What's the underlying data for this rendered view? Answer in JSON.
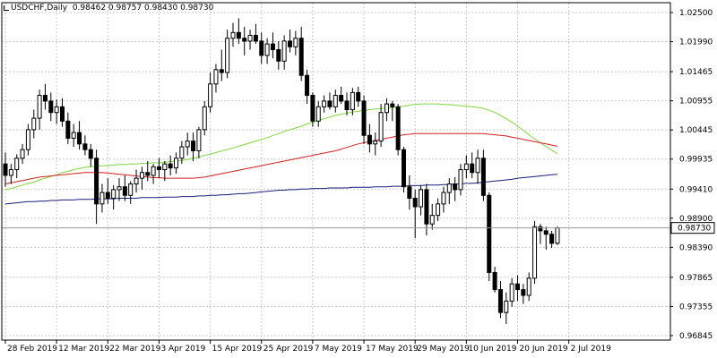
{
  "header": {
    "symbol_period": "USDCHF,Daily",
    "open": "0.98462",
    "high": "0.98757",
    "low": "0.98430",
    "close": "0.98730"
  },
  "colors": {
    "background": "#ffffff",
    "grid": "#c8c8c8",
    "candle_up_fill": "#ffffff",
    "candle_down_fill": "#000000",
    "candle_outline": "#000000",
    "ma_fast": "#7fd63a",
    "ma_mid": "#d42020",
    "ma_slow": "#1c1c7c",
    "price_label_bg": "#ffffff",
    "current_line": "#9a9a9a"
  },
  "chart_data": {
    "type": "candlestick",
    "price_axis": {
      "ticks": [
        "1.02500",
        "1.01990",
        "1.01465",
        "1.00955",
        "1.00445",
        "0.99935",
        "0.99410",
        "0.98900",
        "0.98390",
        "0.97865",
        "0.97355",
        "0.96845"
      ],
      "ylim": [
        0.96845,
        1.025
      ],
      "current_price_label": "0.98730"
    },
    "time_axis": {
      "ticks": [
        "28 Feb 2019",
        "12 Mar 2019",
        "22 Mar 2019",
        "3 Apr 2019",
        "15 Apr 2019",
        "25 Apr 2019",
        "7 May 2019",
        "17 May 2019",
        "29 May 2019",
        "10 Jun 2019",
        "20 Jun 2019",
        "2 Jul 2019"
      ]
    },
    "candles": [
      [
        0.9985,
        1.0005,
        0.9945,
        0.9965
      ],
      [
        0.9965,
        0.9985,
        0.995,
        0.9975
      ],
      [
        0.9975,
        1.0002,
        0.996,
        0.9995
      ],
      [
        0.9995,
        1.002,
        0.9985,
        1.001
      ],
      [
        1.001,
        1.0055,
        1.0,
        1.0045
      ],
      [
        1.0045,
        1.008,
        1.003,
        1.0065
      ],
      [
        1.0065,
        1.0115,
        1.0045,
        1.0105
      ],
      [
        1.0105,
        1.0125,
        1.008,
        1.0095
      ],
      [
        1.0095,
        1.011,
        1.006,
        1.0075
      ],
      [
        1.0075,
        1.0098,
        1.0055,
        1.0085
      ],
      [
        1.0085,
        1.01,
        1.005,
        1.006
      ],
      [
        1.006,
        1.0075,
        1.002,
        1.003
      ],
      [
        1.003,
        1.0055,
        1.0015,
        1.004
      ],
      [
        1.004,
        1.006,
        1.001,
        1.002
      ],
      [
        1.002,
        1.0035,
        1.0,
        1.001
      ],
      [
        1.001,
        1.002,
        0.998,
        0.9995
      ],
      [
        0.9995,
        1.001,
        0.988,
        0.9915
      ],
      [
        0.9915,
        0.995,
        0.99,
        0.9935
      ],
      [
        0.9935,
        0.996,
        0.9915,
        0.9925
      ],
      [
        0.9925,
        0.9948,
        0.9905,
        0.994
      ],
      [
        0.994,
        0.996,
        0.992,
        0.9945
      ],
      [
        0.9945,
        0.9965,
        0.992,
        0.993
      ],
      [
        0.993,
        0.9955,
        0.9915,
        0.995
      ],
      [
        0.995,
        0.9975,
        0.9935,
        0.996
      ],
      [
        0.996,
        0.998,
        0.994,
        0.997
      ],
      [
        0.997,
        0.999,
        0.9955,
        0.9965
      ],
      [
        0.9965,
        0.9985,
        0.995,
        0.998
      ],
      [
        0.998,
        0.9995,
        0.996,
        0.9975
      ],
      [
        0.9975,
        0.999,
        0.9955,
        0.9985
      ],
      [
        0.9985,
        1.0,
        0.9965,
        0.9978
      ],
      [
        0.9978,
        1.0005,
        0.9968,
        0.9995
      ],
      [
        0.9995,
        1.0025,
        0.9985,
        1.0015
      ],
      [
        1.0015,
        1.004,
        1.0,
        1.0025
      ],
      [
        1.0025,
        1.004,
        0.999,
        1.0008
      ],
      [
        1.0008,
        1.005,
        0.9995,
        1.0045
      ],
      [
        1.0045,
        1.0095,
        1.0035,
        1.0085
      ],
      [
        1.0085,
        1.0145,
        1.0075,
        1.0125
      ],
      [
        1.0125,
        1.016,
        1.011,
        1.015
      ],
      [
        1.015,
        1.0185,
        1.013,
        1.0145
      ],
      [
        1.0145,
        1.022,
        1.0135,
        1.0205
      ],
      [
        1.0205,
        1.0232,
        1.019,
        1.0215
      ],
      [
        1.0215,
        1.024,
        1.0195,
        1.0205
      ],
      [
        1.0205,
        1.0225,
        1.0175,
        1.02
      ],
      [
        1.02,
        1.022,
        1.0185,
        1.021
      ],
      [
        1.021,
        1.023,
        1.0195,
        1.02
      ],
      [
        1.02,
        1.0215,
        1.016,
        1.0175
      ],
      [
        1.0175,
        1.0205,
        1.016,
        1.0195
      ],
      [
        1.0195,
        1.0215,
        1.017,
        1.0185
      ],
      [
        1.0185,
        1.02,
        1.015,
        1.0165
      ],
      [
        1.0165,
        1.021,
        1.015,
        1.02
      ],
      [
        1.02,
        1.022,
        1.018,
        1.019
      ],
      [
        1.019,
        1.0218,
        1.0175,
        1.0205
      ],
      [
        1.0205,
        1.0225,
        1.013,
        1.014
      ],
      [
        1.014,
        1.015,
        1.009,
        1.0105
      ],
      [
        1.0105,
        1.011,
        1.005,
        1.006
      ],
      [
        1.006,
        1.0095,
        1.005,
        1.0085
      ],
      [
        1.0085,
        1.0105,
        1.0075,
        1.0095
      ],
      [
        1.0095,
        1.011,
        1.008,
        1.0085
      ],
      [
        1.0085,
        1.0115,
        1.0075,
        1.0105
      ],
      [
        1.0105,
        1.012,
        1.009,
        1.0095
      ],
      [
        1.0095,
        1.011,
        1.007,
        1.008
      ],
      [
        1.008,
        1.0118,
        1.007,
        1.011
      ],
      [
        1.011,
        1.012,
        1.0085,
        1.0095
      ],
      [
        1.0095,
        1.0105,
        1.002,
        1.0035
      ],
      [
        1.0035,
        1.0055,
        1.0005,
        1.002
      ],
      [
        1.002,
        1.004,
        1.0,
        1.0025
      ],
      [
        1.0025,
        1.009,
        1.0015,
        1.0075
      ],
      [
        1.0075,
        1.01,
        1.006,
        1.009
      ],
      [
        1.009,
        1.0095,
        1.006,
        1.0085
      ],
      [
        1.0085,
        1.009,
        1.0,
        1.001
      ],
      [
        1.001,
        1.0015,
        0.9935,
        0.9945
      ],
      [
        0.9945,
        0.9965,
        0.9905,
        0.9925
      ],
      [
        0.9925,
        0.994,
        0.9855,
        0.991
      ],
      [
        0.991,
        0.9948,
        0.9895,
        0.994
      ],
      [
        0.994,
        0.995,
        0.986,
        0.988
      ],
      [
        0.988,
        0.9915,
        0.987,
        0.9895
      ],
      [
        0.9895,
        0.9925,
        0.9885,
        0.9915
      ],
      [
        0.9915,
        0.9945,
        0.99,
        0.9935
      ],
      [
        0.9935,
        0.996,
        0.9915,
        0.995
      ],
      [
        0.995,
        0.9962,
        0.992,
        0.994
      ],
      [
        0.994,
        0.9985,
        0.993,
        0.9975
      ],
      [
        0.9975,
        1.0,
        0.996,
        0.9985
      ],
      [
        0.9985,
        1.0005,
        0.996,
        0.997
      ],
      [
        0.997,
        1.001,
        0.995,
        0.9995
      ],
      [
        0.9995,
        1.001,
        0.992,
        0.993
      ],
      [
        0.993,
        0.9935,
        0.978,
        0.9795
      ],
      [
        0.9795,
        0.9805,
        0.976,
        0.9765
      ],
      [
        0.9765,
        0.978,
        0.9715,
        0.9725
      ],
      [
        0.9725,
        0.976,
        0.9705,
        0.9745
      ],
      [
        0.9745,
        0.9785,
        0.9735,
        0.9775
      ],
      [
        0.9775,
        0.979,
        0.9745,
        0.9765
      ],
      [
        0.9765,
        0.9775,
        0.974,
        0.9755
      ],
      [
        0.9755,
        0.9795,
        0.9745,
        0.9785
      ],
      [
        0.9785,
        0.9885,
        0.9775,
        0.9875
      ],
      [
        0.9875,
        0.988,
        0.9845,
        0.9868
      ],
      [
        0.9868,
        0.9875,
        0.9835,
        0.9862
      ],
      [
        0.9862,
        0.9868,
        0.9838,
        0.9846
      ],
      [
        0.98462,
        0.98757,
        0.9843,
        0.9873
      ]
    ],
    "ma_fast": [
      0.994,
      0.9942,
      0.9945,
      0.9948,
      0.9951,
      0.9953,
      0.9957,
      0.996,
      0.9963,
      0.9966,
      0.997,
      0.9972,
      0.9975,
      0.9977,
      0.9979,
      0.998,
      0.9981,
      0.9982,
      0.9982,
      0.9983,
      0.9984,
      0.9984,
      0.9985,
      0.9985,
      0.9986,
      0.9986,
      0.9987,
      0.9987,
      0.9988,
      0.9989,
      0.999,
      0.9991,
      0.9993,
      0.9995,
      0.9997,
      1.0,
      1.0002,
      1.0005,
      1.0008,
      1.001,
      1.0013,
      1.0016,
      1.0019,
      1.0022,
      1.0025,
      1.0028,
      1.0031,
      1.0035,
      1.0038,
      1.0042,
      1.0045,
      1.0048,
      1.0051,
      1.0055,
      1.0058,
      1.0061,
      1.0064,
      1.0067,
      1.007,
      1.0072,
      1.0074,
      1.0076,
      1.0077,
      1.0079,
      1.008,
      1.0081,
      1.0082,
      1.0083,
      1.0084,
      1.0085,
      1.0086,
      1.0088,
      1.0089,
      1.009,
      1.009,
      1.009,
      1.009,
      1.0089,
      1.0089,
      1.0088,
      1.0087,
      1.0086,
      1.0085,
      1.0084,
      1.0082,
      1.0079,
      1.0075,
      1.007,
      1.0064,
      1.0058,
      1.0051,
      1.0044,
      1.0036,
      1.0029,
      1.0022,
      1.0015,
      1.0009,
      1.0003
    ],
    "ma_mid": [
      0.995,
      0.9952,
      0.9954,
      0.9956,
      0.9958,
      0.996,
      0.9962,
      0.9963,
      0.9964,
      0.9965,
      0.9966,
      0.9967,
      0.9968,
      0.9969,
      0.997,
      0.997,
      0.997,
      0.997,
      0.9969,
      0.9968,
      0.9967,
      0.9966,
      0.9965,
      0.9964,
      0.9963,
      0.9962,
      0.9961,
      0.9961,
      0.996,
      0.996,
      0.996,
      0.996,
      0.996,
      0.996,
      0.9961,
      0.9962,
      0.9964,
      0.9966,
      0.9968,
      0.997,
      0.9972,
      0.9974,
      0.9976,
      0.9978,
      0.998,
      0.9982,
      0.9984,
      0.9986,
      0.9988,
      0.999,
      0.9992,
      0.9994,
      0.9996,
      0.9998,
      1.0,
      1.0002,
      1.0004,
      1.0006,
      1.0008,
      1.0011,
      1.0014,
      1.0017,
      1.002,
      1.0022,
      1.0024,
      1.0026,
      1.0028,
      1.003,
      1.0032,
      1.0034,
      1.0036,
      1.0037,
      1.0038,
      1.0038,
      1.0038,
      1.0038,
      1.0038,
      1.0038,
      1.0038,
      1.0038,
      1.0038,
      1.0038,
      1.0038,
      1.0038,
      1.0038,
      1.0037,
      1.0036,
      1.0035,
      1.0034,
      1.0032,
      1.003,
      1.0028,
      1.0026,
      1.0024,
      1.0022,
      1.002,
      1.0018,
      1.0016
    ],
    "ma_slow": [
      0.9915,
      0.9916,
      0.9917,
      0.9918,
      0.9919,
      0.9919,
      0.992,
      0.992,
      0.9921,
      0.9921,
      0.9922,
      0.9922,
      0.9922,
      0.9923,
      0.9923,
      0.9923,
      0.9924,
      0.9924,
      0.9924,
      0.9924,
      0.9925,
      0.9925,
      0.9925,
      0.9925,
      0.9926,
      0.9926,
      0.9926,
      0.9926,
      0.9927,
      0.9927,
      0.9927,
      0.9928,
      0.9928,
      0.9928,
      0.9929,
      0.9929,
      0.993,
      0.993,
      0.9931,
      0.9931,
      0.9932,
      0.9933,
      0.9933,
      0.9934,
      0.9935,
      0.9936,
      0.9937,
      0.9938,
      0.9939,
      0.9939,
      0.994,
      0.994,
      0.9941,
      0.9941,
      0.9942,
      0.9942,
      0.9942,
      0.9943,
      0.9943,
      0.9943,
      0.9943,
      0.9944,
      0.9944,
      0.9944,
      0.9944,
      0.9945,
      0.9945,
      0.9945,
      0.9946,
      0.9946,
      0.9946,
      0.9947,
      0.9947,
      0.9947,
      0.9948,
      0.9948,
      0.9948,
      0.9949,
      0.9949,
      0.995,
      0.995,
      0.9951,
      0.9951,
      0.9952,
      0.9953,
      0.9954,
      0.9955,
      0.9956,
      0.9957,
      0.9958,
      0.996,
      0.9961,
      0.9962,
      0.9963,
      0.9964,
      0.9965,
      0.9966,
      0.9967
    ]
  }
}
